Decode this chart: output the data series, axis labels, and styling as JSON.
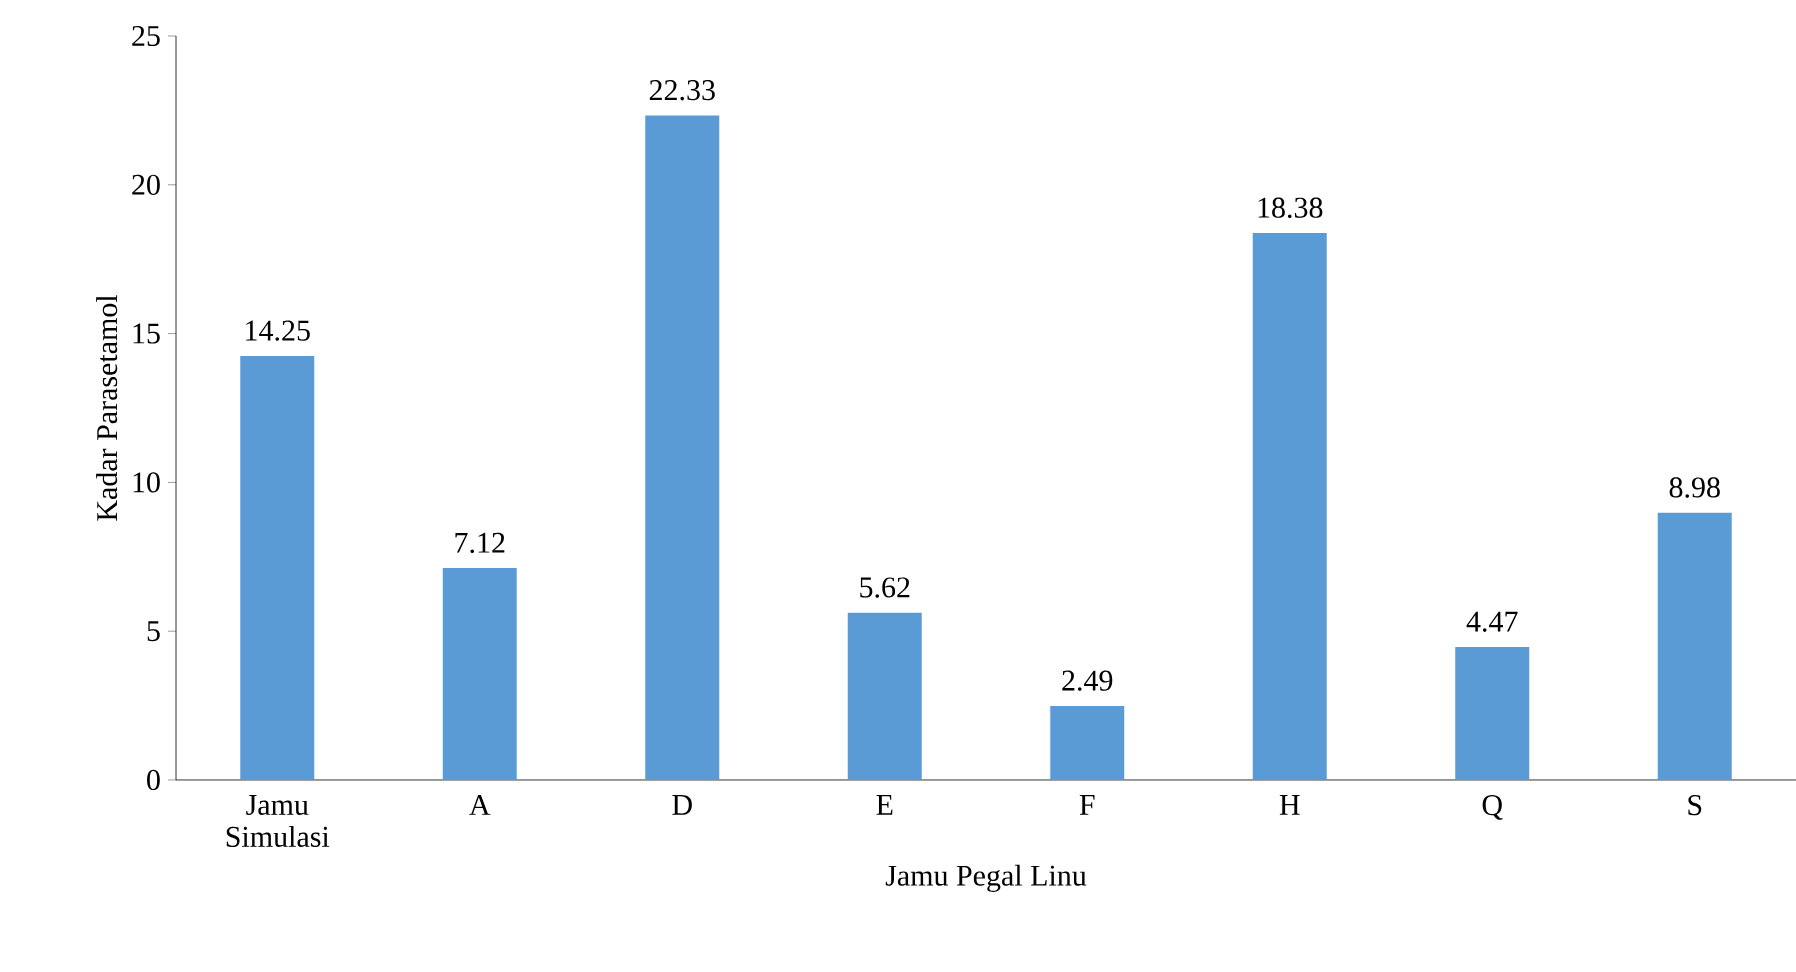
{
  "chart_data": {
    "type": "bar",
    "xlabel": "Jamu Pegal Linu",
    "ylabel": "Kadar Parasetamol",
    "categories": [
      "Jamu Simulasi",
      "A",
      "D",
      "E",
      "F",
      "H",
      "Q",
      "S"
    ],
    "values": [
      14.25,
      7.12,
      22.33,
      5.62,
      2.49,
      18.38,
      4.47,
      8.98
    ],
    "color": "#5b9bd5",
    "ylim": [
      0,
      25
    ],
    "yticks": [
      0,
      5,
      10,
      15,
      20,
      25
    ],
    "data_labels": true
  }
}
